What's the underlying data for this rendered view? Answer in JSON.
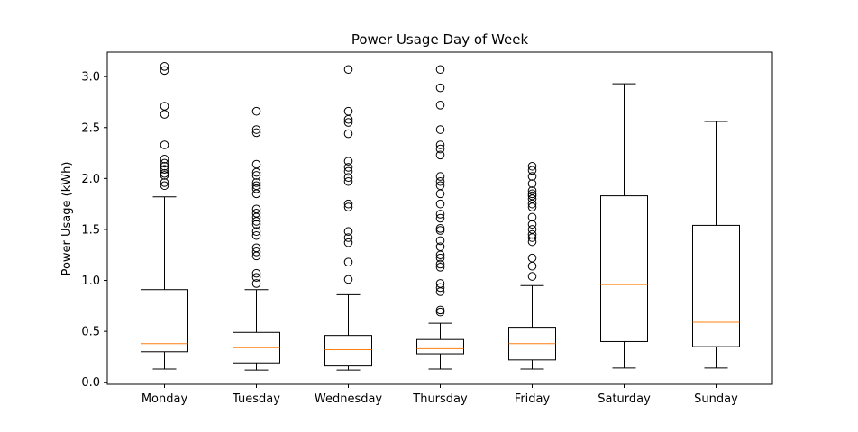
{
  "chart_data": {
    "type": "boxplot",
    "title": "Power Usage Day of Week",
    "xlabel": "",
    "ylabel": "Power Usage (kWh)",
    "ylim": [
      -0.02,
      3.24
    ],
    "yticks": [
      0.0,
      0.5,
      1.0,
      1.5,
      2.0,
      2.5,
      3.0
    ],
    "yticklabels": [
      "0.0",
      "0.5",
      "1.0",
      "1.5",
      "2.0",
      "2.5",
      "3.0"
    ],
    "grid": false,
    "colors": {
      "box": "#000000",
      "median": "#ff7f0e",
      "flier": "#000000"
    },
    "categories": [
      "Monday",
      "Tuesday",
      "Wednesday",
      "Thursday",
      "Friday",
      "Saturday",
      "Sunday"
    ],
    "boxes": [
      {
        "whisker_low": 0.13,
        "q1": 0.3,
        "median": 0.38,
        "q3": 0.91,
        "whisker_high": 1.82,
        "fliers": [
          3.1,
          3.06,
          2.71,
          2.63,
          2.33,
          2.19,
          2.15,
          2.12,
          2.09,
          2.05,
          2.03,
          1.96,
          1.93
        ]
      },
      {
        "whisker_low": 0.12,
        "q1": 0.19,
        "median": 0.34,
        "q3": 0.49,
        "whisker_high": 0.91,
        "fliers": [
          2.66,
          2.48,
          2.45,
          2.14,
          2.06,
          2.03,
          1.96,
          1.93,
          1.9,
          1.85,
          1.7,
          1.66,
          1.62,
          1.58,
          1.55,
          1.48,
          1.44,
          1.32,
          1.28,
          1.24,
          1.07,
          1.03,
          0.97
        ]
      },
      {
        "whisker_low": 0.12,
        "q1": 0.16,
        "median": 0.32,
        "q3": 0.46,
        "whisker_high": 0.86,
        "fliers": [
          3.07,
          2.66,
          2.58,
          2.55,
          2.44,
          2.17,
          2.11,
          2.07,
          2.01,
          1.97,
          1.75,
          1.72,
          1.48,
          1.42,
          1.37,
          1.18,
          1.01
        ]
      },
      {
        "whisker_low": 0.13,
        "q1": 0.28,
        "median": 0.33,
        "q3": 0.42,
        "whisker_high": 0.58,
        "fliers": [
          3.07,
          2.89,
          2.72,
          2.48,
          2.33,
          2.29,
          2.23,
          2.02,
          1.97,
          1.93,
          1.85,
          1.75,
          1.65,
          1.61,
          1.51,
          1.49,
          1.39,
          1.33,
          1.25,
          1.22,
          1.16,
          1.13,
          0.97,
          0.93,
          0.89,
          0.71,
          0.69
        ]
      },
      {
        "whisker_low": 0.13,
        "q1": 0.22,
        "median": 0.38,
        "q3": 0.54,
        "whisker_high": 0.95,
        "fliers": [
          2.12,
          2.08,
          2.02,
          1.95,
          1.88,
          1.85,
          1.83,
          1.8,
          1.75,
          1.72,
          1.62,
          1.55,
          1.5,
          1.45,
          1.42,
          1.38,
          1.22,
          1.14,
          1.04
        ]
      },
      {
        "whisker_low": 0.14,
        "q1": 0.4,
        "median": 0.96,
        "q3": 1.83,
        "whisker_high": 2.93,
        "fliers": []
      },
      {
        "whisker_low": 0.14,
        "q1": 0.35,
        "median": 0.59,
        "q3": 1.54,
        "whisker_high": 2.56,
        "fliers": []
      }
    ]
  }
}
